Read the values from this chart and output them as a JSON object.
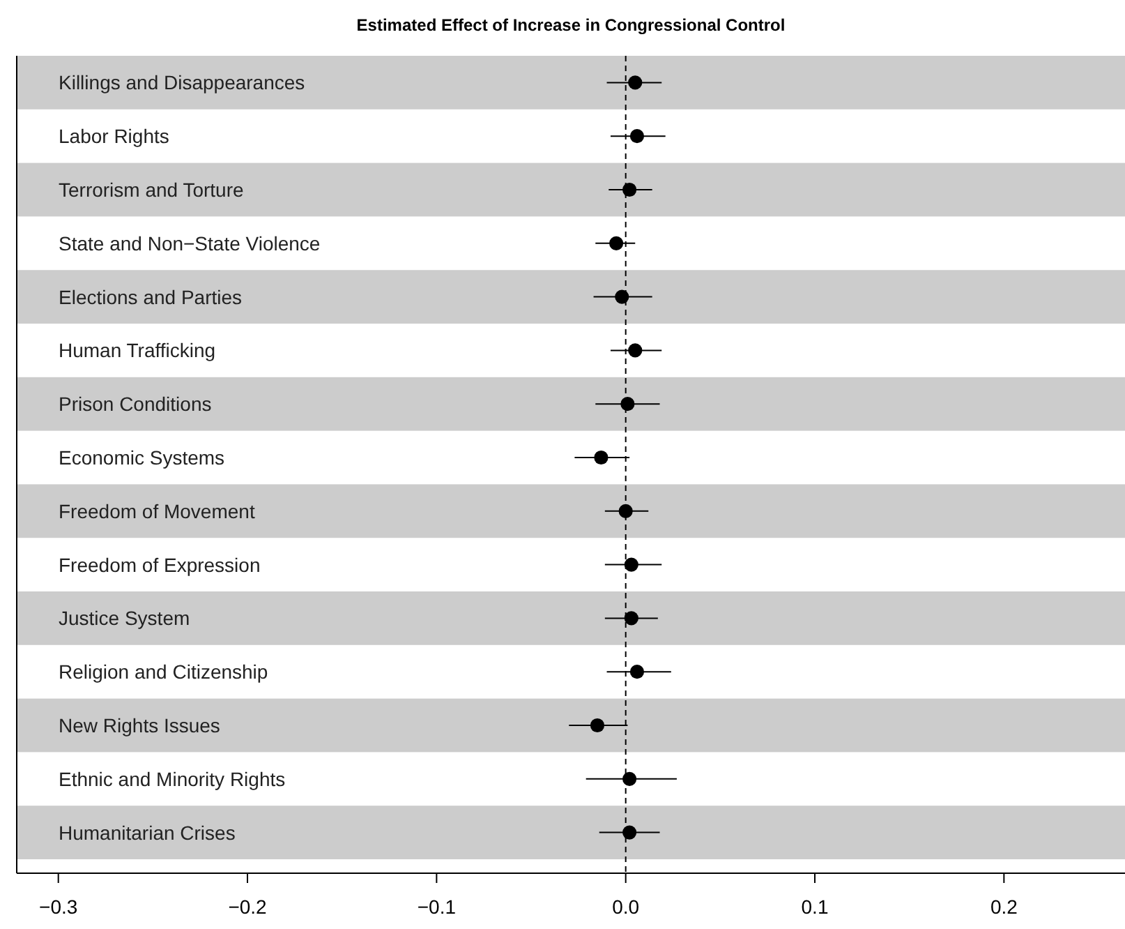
{
  "chart_data": {
    "type": "scatter",
    "orientation": "horizontal",
    "title": "Estimated Effect of Increase in Congressional Control",
    "categories": [
      "Killings and Disappearances",
      "Labor Rights",
      "Terrorism and Torture",
      "State and Non−State Violence",
      "Elections and Parties",
      "Human Trafficking",
      "Prison Conditions",
      "Economic Systems",
      "Freedom of Movement",
      "Freedom of Expression",
      "Justice System",
      "Religion and Citizenship",
      "New Rights Issues",
      "Ethnic and Minority Rights",
      "Humanitarian Crises"
    ],
    "values": [
      0.005,
      0.006,
      0.002,
      -0.005,
      -0.002,
      0.005,
      0.001,
      -0.013,
      0.0,
      0.003,
      0.003,
      0.006,
      -0.015,
      0.002,
      0.002
    ],
    "errors": [
      [
        -0.01,
        0.019
      ],
      [
        -0.008,
        0.021
      ],
      [
        -0.009,
        0.014
      ],
      [
        -0.016,
        0.005
      ],
      [
        -0.017,
        0.014
      ],
      [
        -0.008,
        0.019
      ],
      [
        -0.016,
        0.018
      ],
      [
        -0.027,
        0.002
      ],
      [
        -0.011,
        0.012
      ],
      [
        -0.011,
        0.019
      ],
      [
        -0.011,
        0.017
      ],
      [
        -0.01,
        0.024
      ],
      [
        -0.03,
        0.001
      ],
      [
        -0.021,
        0.027
      ],
      [
        -0.014,
        0.018
      ]
    ],
    "color": "#000000",
    "marker": "circle",
    "xlim": [
      -0.322,
      0.264
    ],
    "xticks": [
      {
        "value": -0.3,
        "label": "−0.3"
      },
      {
        "value": -0.2,
        "label": "−0.2"
      },
      {
        "value": -0.1,
        "label": "−0.1"
      },
      {
        "value": 0,
        "label": "0.0"
      },
      {
        "value": 0.1,
        "label": "0.1"
      },
      {
        "value": 0.2,
        "label": "0.2"
      }
    ],
    "ref_lines": [
      {
        "axis": "x",
        "value": 0,
        "line_style": "dashed",
        "color": "#000000"
      }
    ],
    "grid": false
  }
}
